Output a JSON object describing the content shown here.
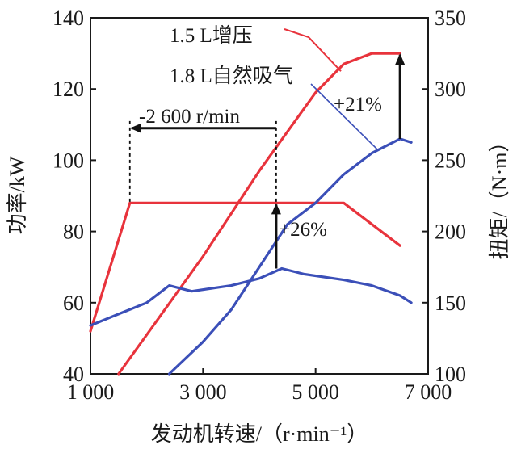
{
  "chart_data": {
    "type": "line",
    "title": "",
    "xlabel": "发动机转速/（r·min⁻¹）",
    "ylabel_left": "功率/kW",
    "ylabel_right": "扭矩/（N·m）",
    "xlim": [
      1000,
      7000
    ],
    "ylim_left": [
      40,
      140
    ],
    "ylim_right": [
      100,
      350
    ],
    "x_ticks": [
      "1 000",
      "3 000",
      "5 000",
      "7 000"
    ],
    "x_tick_values": [
      1000,
      3000,
      5000,
      7000
    ],
    "y_left_ticks": [
      "40",
      "60",
      "80",
      "100",
      "120",
      "140"
    ],
    "y_left_tick_values": [
      40,
      60,
      80,
      100,
      120,
      140
    ],
    "y_right_ticks": [
      "100",
      "150",
      "200",
      "250",
      "300",
      "350"
    ],
    "y_right_tick_values": [
      100,
      150,
      200,
      250,
      300,
      350
    ],
    "grid": false,
    "colors": {
      "turbo": "#e8333c",
      "natural": "#3b4fb8",
      "annotation": "#111111"
    },
    "series": [
      {
        "name": "1.5 L增压",
        "kind": "power",
        "axis": "left",
        "color": "#e8333c",
        "x": [
          1500,
          2000,
          2500,
          3000,
          3500,
          4000,
          4500,
          5000,
          5500,
          6000,
          6500
        ],
        "y": [
          40,
          51,
          62,
          73,
          85,
          97,
          108,
          119,
          127,
          130,
          130
        ]
      },
      {
        "name": "1.5 L增压",
        "kind": "torque",
        "axis": "right",
        "color": "#e8333c",
        "x": [
          1000,
          1700,
          2500,
          3500,
          4500,
          5500,
          6500
        ],
        "y": [
          130,
          220,
          220,
          220,
          220,
          220,
          190
        ]
      },
      {
        "name": "1.8 L自然吸气",
        "kind": "power",
        "axis": "left",
        "color": "#3b4fb8",
        "x": [
          2400,
          3000,
          3500,
          4000,
          4500,
          5000,
          5500,
          6000,
          6500,
          6700
        ],
        "y": [
          40,
          49,
          58,
          70,
          82,
          88,
          96,
          102,
          106,
          105
        ]
      },
      {
        "name": "1.8 L自然吸气",
        "kind": "torque",
        "axis": "right",
        "color": "#3b4fb8",
        "x": [
          1000,
          1500,
          2000,
          2400,
          2800,
          3500,
          4000,
          4400,
          4800,
          5500,
          6000,
          6500,
          6700
        ],
        "y": [
          134,
          142,
          150,
          162,
          158,
          162,
          167,
          174,
          170,
          166,
          162,
          155,
          150
        ]
      }
    ],
    "annotations": [
      {
        "text": "-2 600 r/min"
      },
      {
        "text": "+21%"
      },
      {
        "text": "+26%"
      }
    ],
    "legend_labels": [
      "1.5 L增压",
      "1.8 L自然吸气"
    ]
  }
}
